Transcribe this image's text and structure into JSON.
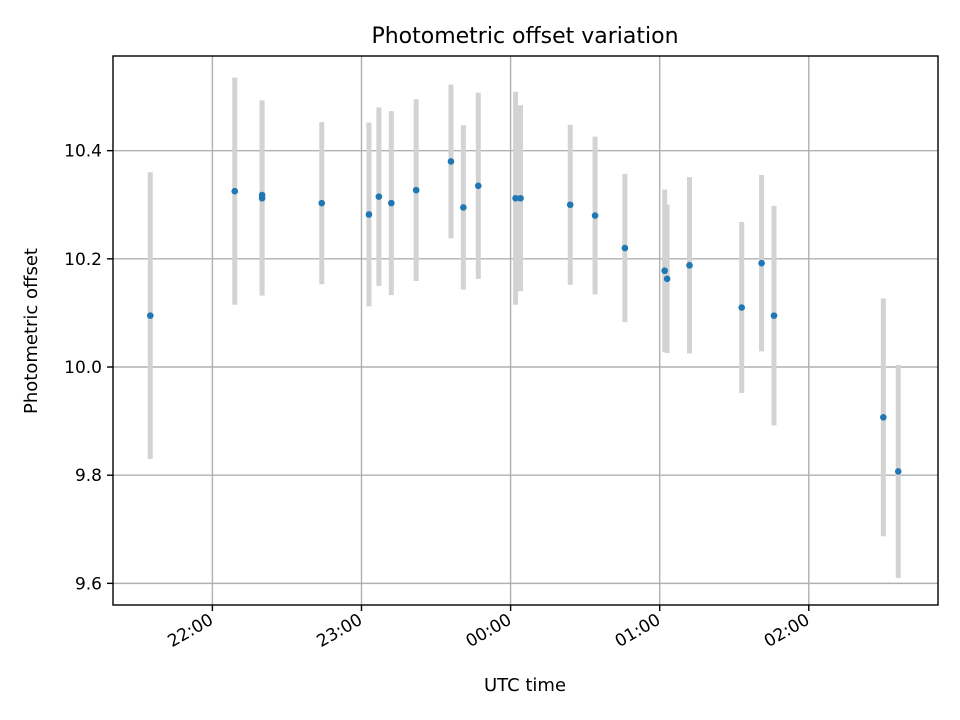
{
  "chart_data": {
    "type": "scatter",
    "title": "Photometric offset variation",
    "xlabel": "UTC time",
    "ylabel": "Photometric offset",
    "x_unit": "UTC time of day (HH:MM)",
    "xlim": [
      "21:20",
      "02:52"
    ],
    "ylim": [
      9.56,
      10.575
    ],
    "xticks": [
      "22:00",
      "23:00",
      "00:00",
      "01:00",
      "02:00"
    ],
    "yticks": [
      9.6,
      9.8,
      10.0,
      10.2,
      10.4
    ],
    "ytick_labels": [
      "9.6",
      "9.8",
      "10.0",
      "10.2",
      "10.4"
    ],
    "grid": true,
    "legend": "none",
    "colors": {
      "points": "#1f77b4",
      "errorbars": "#d3d3d3",
      "grid": "#b0b0b0"
    },
    "points": [
      {
        "x": "21:35",
        "y": 10.095,
        "yerr": 0.265
      },
      {
        "x": "22:09",
        "y": 10.325,
        "yerr": 0.21
      },
      {
        "x": "22:20",
        "y": 10.312,
        "yerr": 0.18
      },
      {
        "x": "22:20",
        "y": 10.318,
        "yerr": 0.175
      },
      {
        "x": "22:44",
        "y": 10.303,
        "yerr": 0.15
      },
      {
        "x": "23:03",
        "y": 10.282,
        "yerr": 0.17
      },
      {
        "x": "23:07",
        "y": 10.315,
        "yerr": 0.165
      },
      {
        "x": "23:12",
        "y": 10.303,
        "yerr": 0.17
      },
      {
        "x": "23:22",
        "y": 10.327,
        "yerr": 0.168
      },
      {
        "x": "23:36",
        "y": 10.38,
        "yerr": 0.142
      },
      {
        "x": "23:41",
        "y": 10.295,
        "yerr": 0.152
      },
      {
        "x": "23:47",
        "y": 10.335,
        "yerr": 0.172
      },
      {
        "x": "00:02",
        "y": 10.312,
        "yerr": 0.197
      },
      {
        "x": "00:04",
        "y": 10.312,
        "yerr": 0.172
      },
      {
        "x": "00:24",
        "y": 10.3,
        "yerr": 0.148
      },
      {
        "x": "00:34",
        "y": 10.28,
        "yerr": 0.146
      },
      {
        "x": "00:46",
        "y": 10.22,
        "yerr": 0.137
      },
      {
        "x": "01:02",
        "y": 10.178,
        "yerr": 0.15
      },
      {
        "x": "01:03",
        "y": 10.163,
        "yerr": 0.137
      },
      {
        "x": "01:12",
        "y": 10.188,
        "yerr": 0.163
      },
      {
        "x": "01:33",
        "y": 10.11,
        "yerr": 0.158
      },
      {
        "x": "01:41",
        "y": 10.192,
        "yerr": 0.163
      },
      {
        "x": "01:46",
        "y": 10.095,
        "yerr": 0.203
      },
      {
        "x": "02:30",
        "y": 9.907,
        "yerr": 0.22
      },
      {
        "x": "02:36",
        "y": 9.807,
        "yerr": 0.197
      }
    ]
  }
}
